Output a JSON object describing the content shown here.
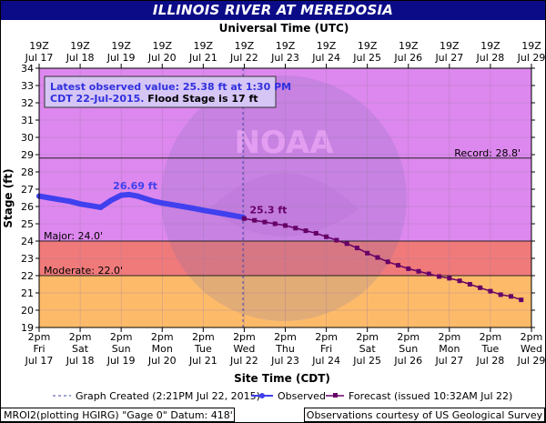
{
  "title": "ILLINOIS RIVER AT MEREDOSIA",
  "footer": {
    "datum": "MROI2(plotting HGIRG) \"Gage 0\" Datum: 418'",
    "credit": "Observations courtesy of US Geological Survey"
  },
  "colors": {
    "title_bg": "#0b0b88",
    "record_zone": "#dd88ee",
    "major_zone": "#f07a7a",
    "moderate_zone": "#fdbb6a",
    "below_zone": "#ffffff",
    "observed": "#4040ee",
    "forecast": "#660066"
  },
  "chart_data": {
    "type": "line",
    "title": "ILLINOIS RIVER AT MEREDOSIA",
    "xlabel": "Site Time (CDT)",
    "x2label": "Universal Time (UTC)",
    "ylabel": "Stage (ft)",
    "ylim": [
      19,
      34
    ],
    "yticks": [
      19,
      20,
      21,
      22,
      23,
      24,
      25,
      26,
      27,
      28,
      29,
      30,
      31,
      32,
      33,
      34
    ],
    "x_days_cdt": [
      {
        "time": "2pm",
        "dow": "Fri",
        "date": "Jul 17"
      },
      {
        "time": "2pm",
        "dow": "Sat",
        "date": "Jul 18"
      },
      {
        "time": "2pm",
        "dow": "Sun",
        "date": "Jul 19"
      },
      {
        "time": "2pm",
        "dow": "Mon",
        "date": "Jul 20"
      },
      {
        "time": "2pm",
        "dow": "Tue",
        "date": "Jul 21"
      },
      {
        "time": "2pm",
        "dow": "Wed",
        "date": "Jul 22"
      },
      {
        "time": "2pm",
        "dow": "Thu",
        "date": "Jul 23"
      },
      {
        "time": "2pm",
        "dow": "Fri",
        "date": "Jul 24"
      },
      {
        "time": "2pm",
        "dow": "Sat",
        "date": "Jul 25"
      },
      {
        "time": "2pm",
        "dow": "Sun",
        "date": "Jul 26"
      },
      {
        "time": "2pm",
        "dow": "Mon",
        "date": "Jul 27"
      },
      {
        "time": "2pm",
        "dow": "Tue",
        "date": "Jul 28"
      },
      {
        "time": "2pm",
        "dow": "Wed",
        "date": "Jul 29"
      }
    ],
    "x_days_utc": [
      {
        "time": "19Z",
        "date": "Jul 17"
      },
      {
        "time": "19Z",
        "date": "Jul 18"
      },
      {
        "time": "19Z",
        "date": "Jul 19"
      },
      {
        "time": "19Z",
        "date": "Jul 20"
      },
      {
        "time": "19Z",
        "date": "Jul 21"
      },
      {
        "time": "19Z",
        "date": "Jul 22"
      },
      {
        "time": "19Z",
        "date": "Jul 23"
      },
      {
        "time": "19Z",
        "date": "Jul 24"
      },
      {
        "time": "19Z",
        "date": "Jul 25"
      },
      {
        "time": "19Z",
        "date": "Jul 26"
      },
      {
        "time": "19Z",
        "date": "Jul 27"
      },
      {
        "time": "19Z",
        "date": "Jul 28"
      },
      {
        "time": "19Z",
        "date": "Jul 29"
      }
    ],
    "flood_levels": [
      {
        "name": "Record",
        "label": "Record: 28.8'",
        "value": 28.8
      },
      {
        "name": "Major",
        "label": "Major: 24.0'",
        "value": 24.0
      },
      {
        "name": "Moderate",
        "label": "Moderate: 22.0'",
        "value": 22.0
      }
    ],
    "series": [
      {
        "name": "Observed",
        "x_unit": "days since Jul 17 2pm CDT",
        "x": [
          0,
          0.25,
          0.5,
          0.75,
          1.0,
          1.25,
          1.5,
          1.75,
          2.0,
          2.2,
          2.4,
          2.6,
          2.8,
          3.0,
          3.25,
          3.5,
          3.75,
          4.0,
          4.25,
          4.5,
          4.75,
          4.97
        ],
        "values": [
          26.6,
          26.5,
          26.4,
          26.3,
          26.15,
          26.05,
          25.95,
          26.35,
          26.65,
          26.69,
          26.6,
          26.45,
          26.3,
          26.2,
          26.1,
          26.0,
          25.9,
          25.78,
          25.68,
          25.58,
          25.47,
          25.38
        ]
      },
      {
        "name": "Forecast (issued 10:32AM Jul 22)",
        "x_unit": "days since Jul 17 2pm CDT",
        "x": [
          5.0,
          5.25,
          5.5,
          5.75,
          6.0,
          6.25,
          6.5,
          6.75,
          7.0,
          7.25,
          7.5,
          7.75,
          8.0,
          8.25,
          8.5,
          8.75,
          9.0,
          9.25,
          9.5,
          9.75,
          10.0,
          10.25,
          10.5,
          10.75,
          11.0,
          11.25,
          11.5,
          11.75
        ],
        "values": [
          25.3,
          25.2,
          25.1,
          25.0,
          24.9,
          24.75,
          24.6,
          24.45,
          24.25,
          24.05,
          23.85,
          23.6,
          23.3,
          23.05,
          22.8,
          22.6,
          22.4,
          22.25,
          22.1,
          21.95,
          21.85,
          21.7,
          21.5,
          21.3,
          21.1,
          20.9,
          20.8,
          20.6
        ]
      }
    ],
    "annotations": [
      {
        "text": "26.69 ft",
        "x": 2.2,
        "y": 26.69,
        "color": "#4040ee"
      },
      {
        "text": "25.3 ft",
        "x": 5.0,
        "y": 25.3,
        "color": "#660066"
      }
    ],
    "latest_box": {
      "line1": "Latest observed value: 25.38 ft at 1:30 PM",
      "line2a": "CDT 22-Jul-2015.",
      "line2b": " Flood Stage is 17 ft"
    },
    "graph_created_x": 4.97,
    "legend": {
      "created": "Graph Created (2:21PM Jul 22, 2015)",
      "observed": "Observed",
      "forecast": "Forecast (issued 10:32AM Jul 22)"
    }
  }
}
